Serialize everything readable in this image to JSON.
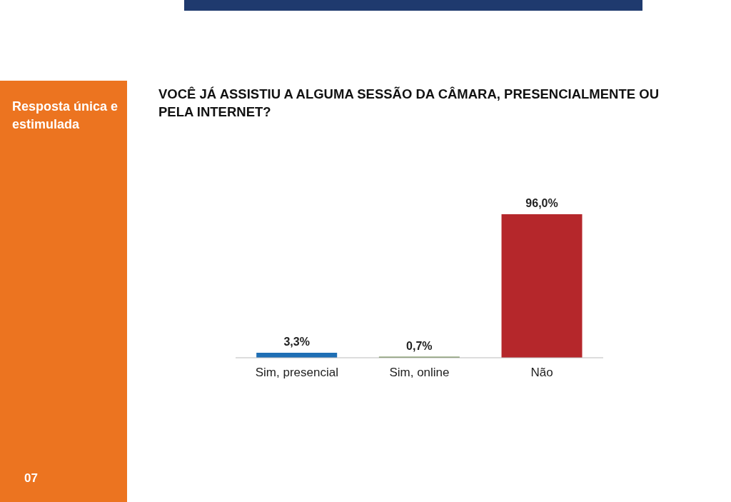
{
  "chart_data": {
    "type": "bar",
    "title": "VOCÊ JÁ ASSISTIU A ALGUMA SESSÃO DA CÂMARA, PRESENCIALMENTE OU PELA INTERNET?",
    "categories": [
      "Sim, presencial",
      "Sim, online",
      "Não"
    ],
    "values": [
      3.3,
      0.7,
      96.0
    ],
    "colors": [
      "#1f6fb5",
      "#6d8a4f",
      "#b5272b"
    ],
    "value_labels": [
      "3,3%",
      "0,7%",
      "96,0%"
    ],
    "annotations": [
      "Resposta única e estimulada",
      "07"
    ],
    "grid": false,
    "legend": false
  }
}
